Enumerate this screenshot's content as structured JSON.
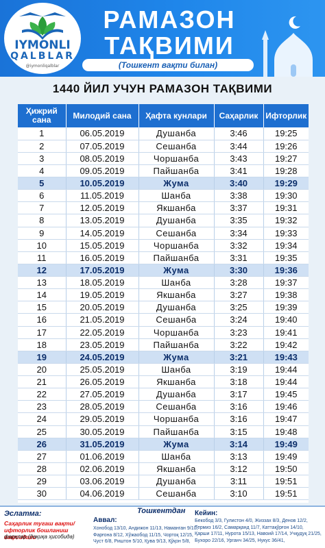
{
  "header": {
    "brand_line1": "IYMONLI",
    "brand_line2": "QALBLAR",
    "brand_handle": "@iymonliqalblar",
    "title_line1": "РАМАЗОН",
    "title_line2": "ТАҚВИМИ",
    "subtitle": "(Тошкент вақти билан)"
  },
  "banner": "1440 ЙИЛ УЧУН РАМАЗОН ТАҚВИМИ",
  "table": {
    "headers": [
      "Ҳижрий сана",
      "Милодий сана",
      "Ҳафта кунлари",
      "Саҳарлик",
      "Ифторлик"
    ],
    "rows": [
      [
        "1",
        "06.05.2019",
        "Душанба",
        "3:46",
        "19:25"
      ],
      [
        "2",
        "07.05.2019",
        "Сешанба",
        "3:44",
        "19:26"
      ],
      [
        "3",
        "08.05.2019",
        "Чоршанба",
        "3:43",
        "19:27"
      ],
      [
        "4",
        "09.05.2019",
        "Пайшанба",
        "3:41",
        "19:28"
      ],
      [
        "5",
        "10.05.2019",
        "Жума",
        "3:40",
        "19:29"
      ],
      [
        "6",
        "11.05.2019",
        "Шанба",
        "3:38",
        "19:30"
      ],
      [
        "7",
        "12.05.2019",
        "Якшанба",
        "3:37",
        "19:31"
      ],
      [
        "8",
        "13.05.2019",
        "Душанба",
        "3:35",
        "19:32"
      ],
      [
        "9",
        "14.05.2019",
        "Сешанба",
        "3:34",
        "19:33"
      ],
      [
        "10",
        "15.05.2019",
        "Чоршанба",
        "3:32",
        "19:34"
      ],
      [
        "11",
        "16.05.2019",
        "Пайшанба",
        "3:31",
        "19:35"
      ],
      [
        "12",
        "17.05.2019",
        "Жума",
        "3:30",
        "19:36"
      ],
      [
        "13",
        "18.05.2019",
        "Шанба",
        "3:28",
        "19:37"
      ],
      [
        "14",
        "19.05.2019",
        "Якшанба",
        "3:27",
        "19:38"
      ],
      [
        "15",
        "20.05.2019",
        "Душанба",
        "3:25",
        "19:39"
      ],
      [
        "16",
        "21.05.2019",
        "Сешанба",
        "3:24",
        "19:40"
      ],
      [
        "17",
        "22.05.2019",
        "Чоршанба",
        "3:23",
        "19:41"
      ],
      [
        "18",
        "23.05.2019",
        "Пайшанба",
        "3:22",
        "19:42"
      ],
      [
        "19",
        "24.05.2019",
        "Жума",
        "3:21",
        "19:43"
      ],
      [
        "20",
        "25.05.2019",
        "Шанба",
        "3:19",
        "19:44"
      ],
      [
        "21",
        "26.05.2019",
        "Якшанба",
        "3:18",
        "19:44"
      ],
      [
        "22",
        "27.05.2019",
        "Душанба",
        "3:17",
        "19:45"
      ],
      [
        "23",
        "28.05.2019",
        "Сешанба",
        "3:16",
        "19:46"
      ],
      [
        "24",
        "29.05.2019",
        "Чоршанба",
        "3:16",
        "19:47"
      ],
      [
        "25",
        "30.05.2019",
        "Пайшанба",
        "3:15",
        "19:48"
      ],
      [
        "26",
        "31.05.2019",
        "Жума",
        "3:14",
        "19:49"
      ],
      [
        "27",
        "01.06.2019",
        "Шанба",
        "3:13",
        "19:49"
      ],
      [
        "28",
        "02.06.2019",
        "Якшанба",
        "3:12",
        "19:50"
      ],
      [
        "29",
        "03.06.2019",
        "Душанба",
        "3:11",
        "19:51"
      ],
      [
        "30",
        "04.06.2019",
        "Сешанба",
        "3:10",
        "19:51"
      ]
    ],
    "highlight_day": "Жума"
  },
  "footer": {
    "note_title": "Эслатма:",
    "note_red": "Саҳарлик тугаш вақти/",
    "note_red2": "ифторлик бошланиш вақтидаги",
    "note_black": "фарқлар (дақиқа ҳисобида)",
    "center_title": "Тошкентдан",
    "earlier_title": "Аввал:",
    "earlier_lines": [
      "Хонобод 13/10, Андижон 11/13, Наманган 9/10,",
      "Фарғона 8/12, Хўжаобод 11/15, Чортоқ 12/15,",
      "Чуст 6/8, Риштон 5/10, Қува 9/13, Қўқон 5/8,"
    ],
    "later_title": "Кейин:",
    "later_lines": [
      "Бекобод 3/3, Гулистон 4/0, Жиззах 8/3, Денов 12/2,",
      "Термиз 16/2, Самарқанд 11/7, Каттақўрғон 14/10,",
      "Қарши 17/11, Нурота 15/13, Навоий 17/14, Учқудуқ 21/25,",
      "Бухоро 22/16, Урганч 34/25, Нукус 36/41,"
    ]
  }
}
